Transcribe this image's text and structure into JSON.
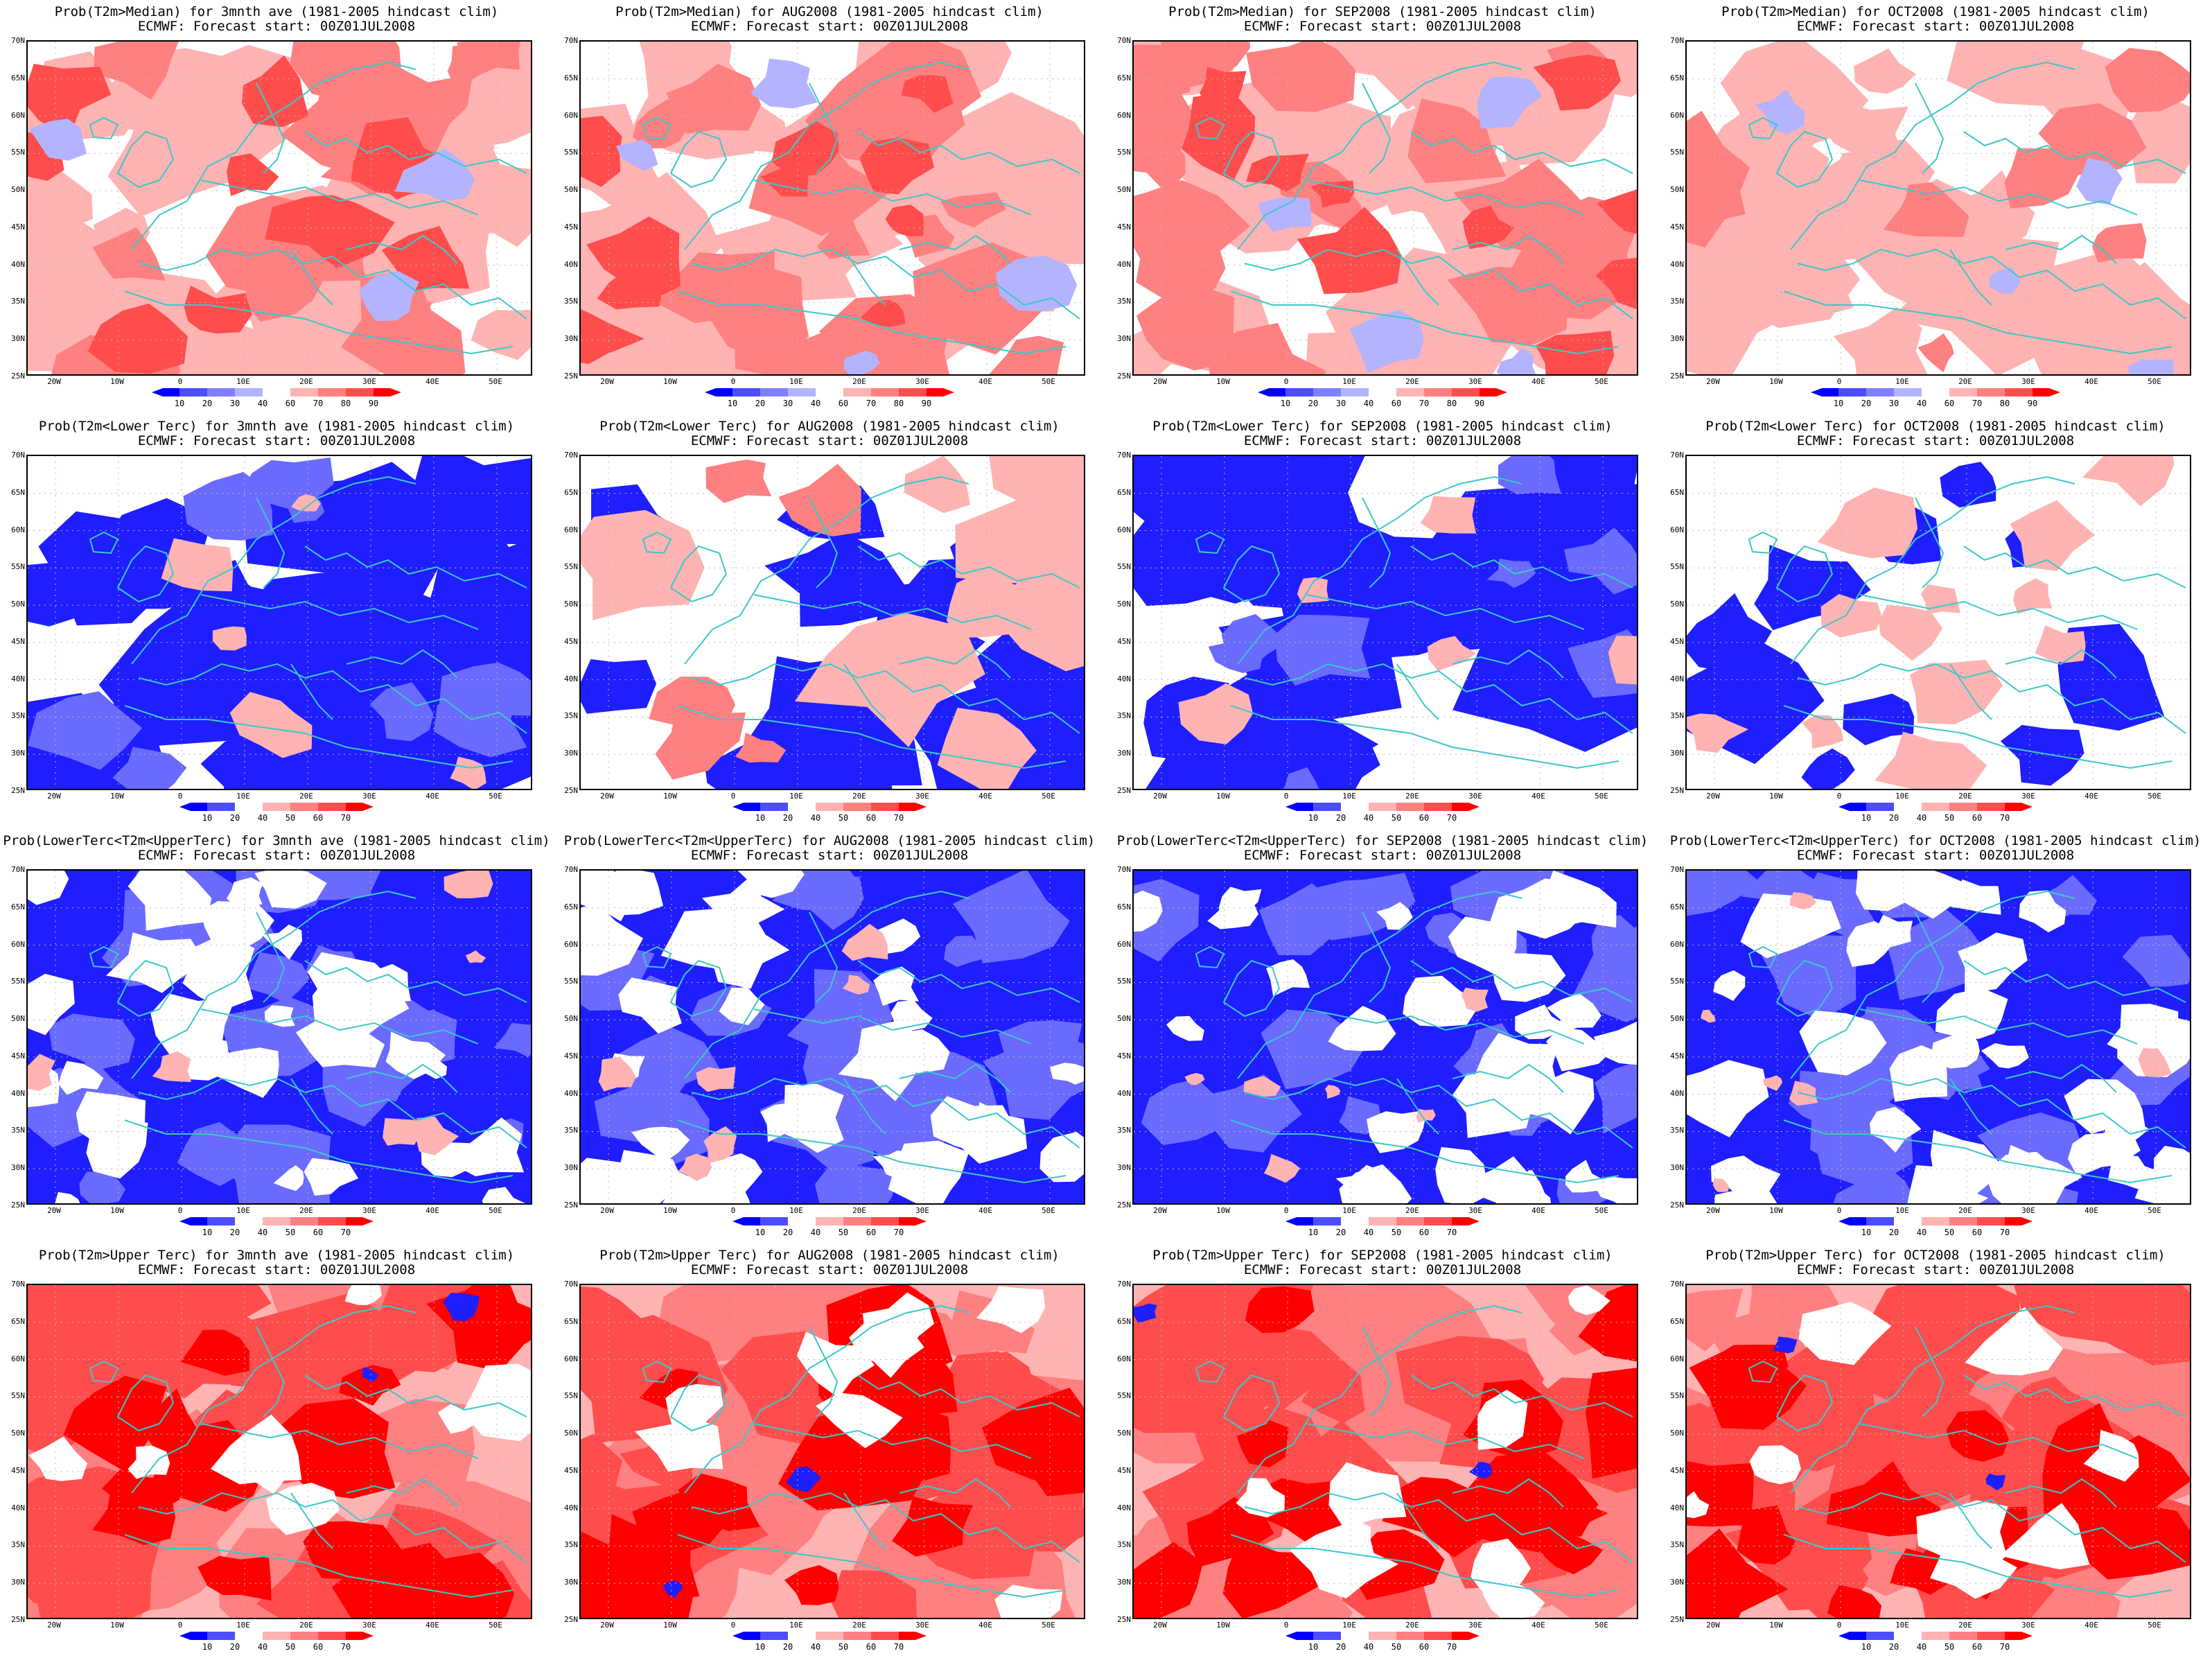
{
  "panels": [
    {
      "title1": "Prob(T2m>Median) for 3mnth ave (1981-2005 hindcast clim)",
      "title2": "ECMWF: Forecast start: 00Z01JUL2008",
      "scale": "median",
      "pattern": "warm"
    },
    {
      "title1": "Prob(T2m>Median) for AUG2008 (1981-2005 hindcast clim)",
      "title2": "ECMWF: Forecast start: 00Z01JUL2008",
      "scale": "median",
      "pattern": "warm"
    },
    {
      "title1": "Prob(T2m>Median) for SEP2008 (1981-2005 hindcast clim)",
      "title2": "ECMWF: Forecast start: 00Z01JUL2008",
      "scale": "median",
      "pattern": "warm"
    },
    {
      "title1": "Prob(T2m>Median) for OCT2008 (1981-2005 hindcast clim)",
      "title2": "ECMWF: Forecast start: 00Z01JUL2008",
      "scale": "median",
      "pattern": "warm-light"
    },
    {
      "title1": "Prob(T2m<Lower Terc) for 3mnth ave (1981-2005 hindcast clim)",
      "title2": "ECMWF: Forecast start: 00Z01JUL2008",
      "scale": "tercile",
      "pattern": "cold"
    },
    {
      "title1": "Prob(T2m<Lower Terc) for AUG2008 (1981-2005 hindcast clim)",
      "title2": "ECMWF: Forecast start: 00Z01JUL2008",
      "scale": "tercile",
      "pattern": "cold-mixed"
    },
    {
      "title1": "Prob(T2m<Lower Terc) for SEP2008 (1981-2005 hindcast clim)",
      "title2": "ECMWF: Forecast start: 00Z01JUL2008",
      "scale": "tercile",
      "pattern": "cold"
    },
    {
      "title1": "Prob(T2m<Lower Terc) for OCT2008 (1981-2005 hindcast clim)",
      "title2": "ECMWF: Forecast start: 00Z01JUL2008",
      "scale": "tercile",
      "pattern": "cold-light"
    },
    {
      "title1": "Prob(LowerTerc<T2m<UpperTerc) for 3mnth ave (1981-2005 hindcast clim)",
      "title2": "ECMWF: Forecast start: 00Z01JUL2008",
      "scale": "tercile",
      "pattern": "middle"
    },
    {
      "title1": "Prob(LowerTerc<T2m<UpperTerc) for AUG2008 (1981-2005 hindcast clim)",
      "title2": "ECMWF: Forecast start: 00Z01JUL2008",
      "scale": "tercile",
      "pattern": "middle"
    },
    {
      "title1": "Prob(LowerTerc<T2m<UpperTerc) for SEP2008 (1981-2005 hindcast clim)",
      "title2": "ECMWF: Forecast start: 00Z01JUL2008",
      "scale": "tercile",
      "pattern": "middle"
    },
    {
      "title1": "Prob(LowerTerc<T2m<UpperTerc) for OCT2008 (1981-2005 hindcast clim)",
      "title2": "ECMWF: Forecast start: 00Z01JUL2008",
      "scale": "tercile",
      "pattern": "middle"
    },
    {
      "title1": "Prob(T2m>Upper Terc) for 3mnth ave (1981-2005 hindcast clim)",
      "title2": "ECMWF: Forecast start: 00Z01JUL2008",
      "scale": "tercile",
      "pattern": "hot"
    },
    {
      "title1": "Prob(T2m>Upper Terc) for AUG2008 (1981-2005 hindcast clim)",
      "title2": "ECMWF: Forecast start: 00Z01JUL2008",
      "scale": "tercile",
      "pattern": "hot"
    },
    {
      "title1": "Prob(T2m>Upper Terc) for SEP2008 (1981-2005 hindcast clim)",
      "title2": "ECMWF: Forecast start: 00Z01JUL2008",
      "scale": "tercile",
      "pattern": "hot"
    },
    {
      "title1": "Prob(T2m>Upper Terc) for OCT2008 (1981-2005 hindcast clim)",
      "title2": "ECMWF: Forecast start: 00Z01JUL2008",
      "scale": "tercile",
      "pattern": "hot"
    }
  ],
  "lat_labels": [
    "70N",
    "65N",
    "60N",
    "55N",
    "50N",
    "45N",
    "40N",
    "35N",
    "30N",
    "25N"
  ],
  "lon_labels": [
    "20W",
    "10W",
    "0",
    "10E",
    "20E",
    "30E",
    "40E",
    "50E"
  ],
  "scales": {
    "median": {
      "labels": [
        "10",
        "20",
        "30",
        "40",
        "60",
        "70",
        "80",
        "90"
      ],
      "colors": [
        "#0000ff",
        "#4d4dff",
        "#8080ff",
        "#b3b3ff",
        "#ffffff",
        "#ffb3b3",
        "#ff8080",
        "#ff4d4d",
        "#ff0000"
      ]
    },
    "tercile": {
      "labels": [
        "10",
        "20",
        "40",
        "50",
        "60",
        "70"
      ],
      "colors": [
        "#0000ff",
        "#4d4dff",
        "#ffffff",
        "#ffb3b3",
        "#ff8080",
        "#ff4d4d",
        "#ff0000"
      ]
    }
  },
  "colors": {
    "coast": "#3cc8c8",
    "grid": "#bbbbbb",
    "blue_strong": "#1e1eff",
    "blue_mid": "#6a6aff",
    "blue_light": "#b3b3ff",
    "red_light": "#ffb3b3",
    "red_mid": "#ff8080",
    "red_strong": "#ff4d4d",
    "red_full": "#ff0000"
  }
}
